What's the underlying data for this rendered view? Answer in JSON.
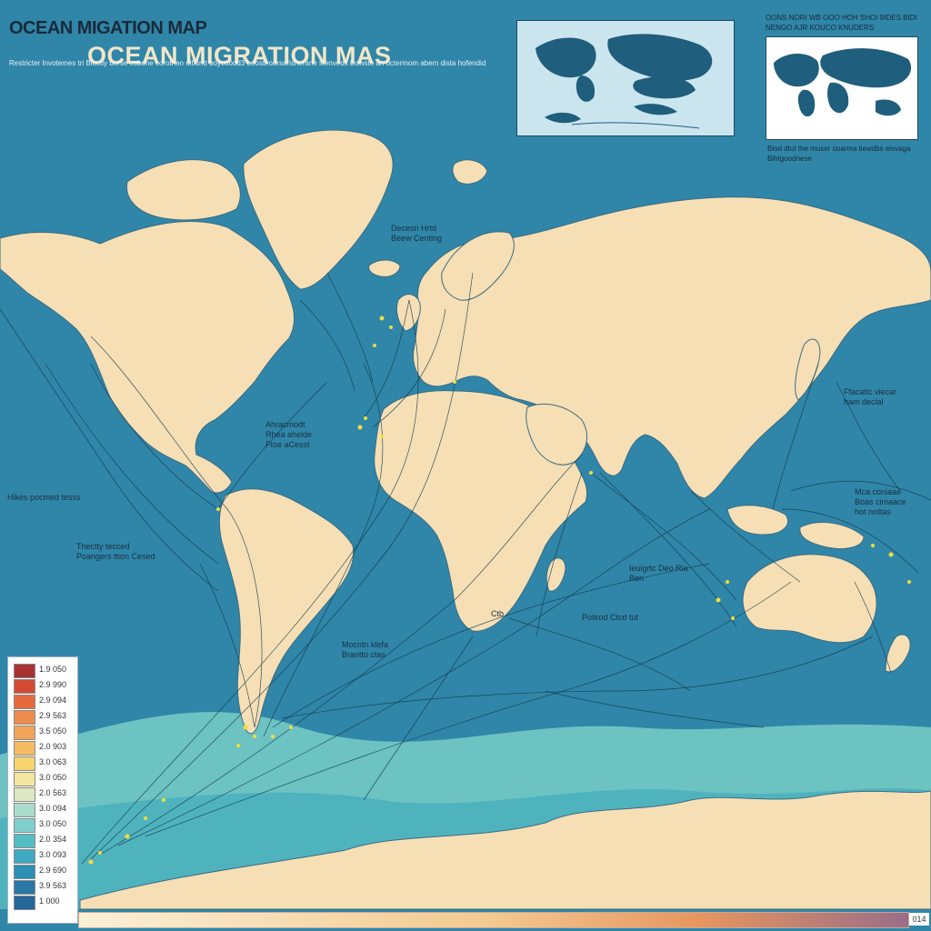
{
  "header": {
    "title_small": "OCEAN MIGATION MAP",
    "title_big": "OCEAN MIGRATION MAS",
    "subtitle": "Restricter\nInvotemes tri Bloctly berse  cobone corothen oifiuntt boycoodd3 boostiroarsarisherane litenveds\nBowsto an octermom abem dista hofendid"
  },
  "inset_header": "OONS NORI WB OOO HOH SHOI 9IDES\nBIDI NENGO AJR KOUCO KNUDERS",
  "inset_caption": "Biod dtut the muser ooanna tiewdbs eisvaga\nBihtgoodnese",
  "annotations": [
    {
      "text": "Decesn Hrtd\nBeew Centing"
    },
    {
      "text": "Ahracmodt\nRhea ahelde\nFtoe aCesst"
    },
    {
      "text": "Hikes pocmed tesss"
    },
    {
      "text": "Thectty tecced\nPoangers ttion Cesed"
    },
    {
      "text": "Mocntn klefa\nBrantto ctas"
    },
    {
      "text": "Ffacatic viecar\nham decial"
    },
    {
      "text": "Mca coniaae\nBoas cimaace\nhot nrdtas"
    },
    {
      "text": "Ieuigrtc Deo Ria\nBen"
    },
    {
      "text": "Poitrod Ctcd tut"
    },
    {
      "text": "Ctb"
    }
  ],
  "legend": {
    "items": [
      {
        "value": "1.9  050",
        "color": "#a83231"
      },
      {
        "value": "2.9  990",
        "color": "#d44a32"
      },
      {
        "value": "2.9  094",
        "color": "#e76a3d"
      },
      {
        "value": "2.9  563",
        "color": "#ef8c4b"
      },
      {
        "value": "3.5  050",
        "color": "#f2a35a"
      },
      {
        "value": "2.0  903",
        "color": "#f3bc62"
      },
      {
        "value": "3.0  063",
        "color": "#f6d46e"
      },
      {
        "value": "3.0  050",
        "color": "#f3e6a0"
      },
      {
        "value": "2.0  563",
        "color": "#dce9c0"
      },
      {
        "value": "3.0  094",
        "color": "#a9dccd"
      },
      {
        "value": "3.0  050",
        "color": "#7fd0cc"
      },
      {
        "value": "2.0  354",
        "color": "#55bdc4"
      },
      {
        "value": "3.0  093",
        "color": "#3ea9c0"
      },
      {
        "value": "2.9  690",
        "color": "#2e8fb4"
      },
      {
        "value": "3.9  563",
        "color": "#2a78a6"
      },
      {
        "value": "1  000",
        "color": "#24679a"
      }
    ]
  },
  "scale_end_label": "014",
  "colors": {
    "ocean": "#2f86a8",
    "land": "#f6dfb5",
    "antarctic_shelf": "#6cc3c1",
    "route_line": "#143a4e",
    "hotspot": "#f3dc3c"
  }
}
